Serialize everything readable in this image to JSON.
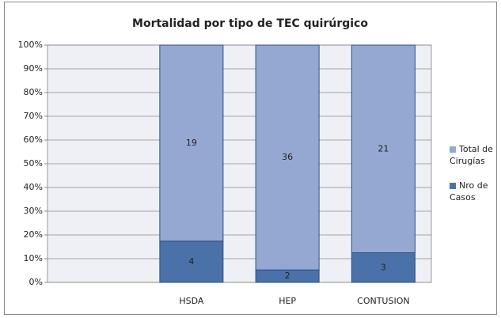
{
  "chart_data": {
    "type": "bar",
    "stacking": "percent",
    "title": "Mortalidad por tipo de TEC quirúrgico",
    "categories": [
      null,
      "HSDA",
      "HEP",
      "CONTUSION"
    ],
    "series": [
      {
        "name": "Nro de Casos",
        "color": "#4a72a8",
        "values": [
          null,
          4,
          2,
          3
        ]
      },
      {
        "name": "Total de Cirugías",
        "color": "#94a8d2",
        "values": [
          null,
          19,
          36,
          21
        ]
      }
    ],
    "ylim": [
      0,
      100
    ],
    "yticks": [
      {
        "value": 0,
        "label": "0%"
      },
      {
        "value": 10,
        "label": "10%"
      },
      {
        "value": 20,
        "label": "20%"
      },
      {
        "value": 30,
        "label": "30%"
      },
      {
        "value": 40,
        "label": "40%"
      },
      {
        "value": 50,
        "label": "50%"
      },
      {
        "value": 60,
        "label": "60%"
      },
      {
        "value": 70,
        "label": "70%"
      },
      {
        "value": 80,
        "label": "80%"
      },
      {
        "value": 90,
        "label": "90%"
      },
      {
        "value": 100,
        "label": "100%"
      }
    ],
    "grid": true,
    "legend": "right"
  }
}
